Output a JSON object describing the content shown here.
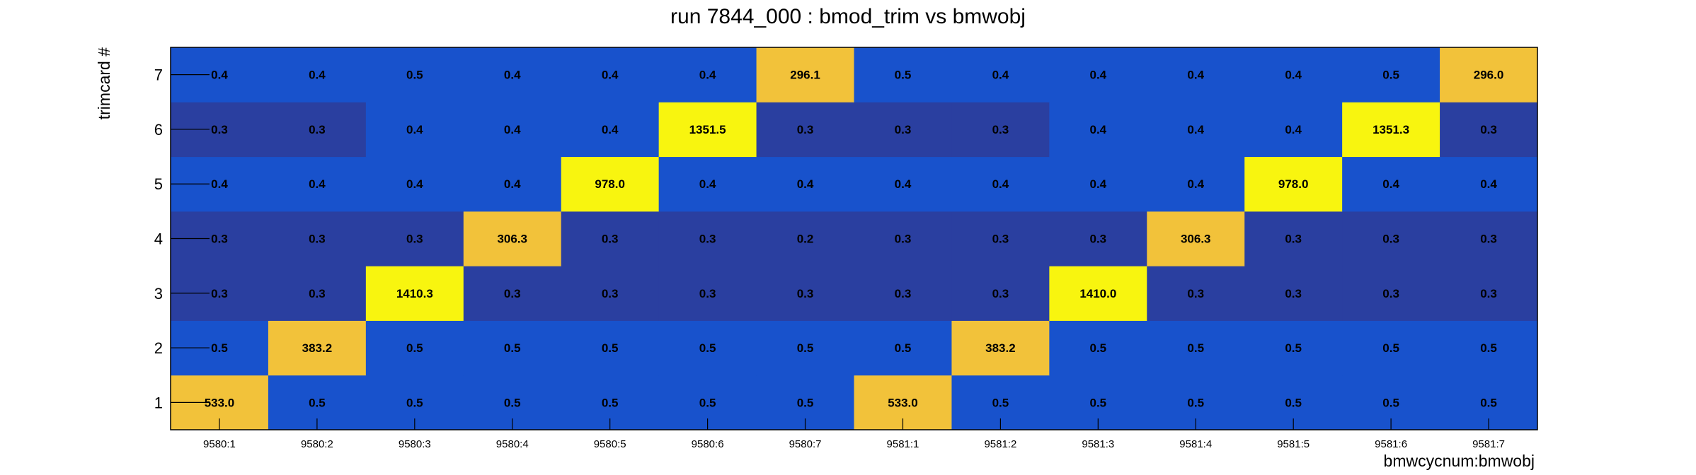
{
  "chart_data": {
    "type": "heatmap",
    "title": "run 7844_000 : bmod_trim vs bmwobj",
    "xlabel": "bmwcycnum:bmwobj",
    "ylabel": "trimcard #",
    "x_categories": [
      "9580:1",
      "9580:2",
      "9580:3",
      "9580:4",
      "9580:5",
      "9580:6",
      "9580:7",
      "9581:1",
      "9581:2",
      "9581:3",
      "9581:4",
      "9581:5",
      "9581:6",
      "9581:7"
    ],
    "y_categories": [
      "1",
      "2",
      "3",
      "4",
      "5",
      "6",
      "7"
    ],
    "values": [
      [
        533.0,
        0.5,
        0.5,
        0.5,
        0.5,
        0.5,
        0.5,
        533.0,
        0.5,
        0.5,
        0.5,
        0.5,
        0.5,
        0.5
      ],
      [
        0.5,
        383.2,
        0.5,
        0.5,
        0.5,
        0.5,
        0.5,
        0.5,
        383.2,
        0.5,
        0.5,
        0.5,
        0.5,
        0.5
      ],
      [
        0.3,
        0.3,
        1410.3,
        0.3,
        0.3,
        0.3,
        0.3,
        0.3,
        0.3,
        1410.0,
        0.3,
        0.3,
        0.3,
        0.3
      ],
      [
        0.3,
        0.3,
        0.3,
        306.3,
        0.3,
        0.3,
        0.2,
        0.3,
        0.3,
        0.3,
        306.3,
        0.3,
        0.3,
        0.3
      ],
      [
        0.4,
        0.4,
        0.4,
        0.4,
        978.0,
        0.4,
        0.4,
        0.4,
        0.4,
        0.4,
        0.4,
        978.0,
        0.4,
        0.4
      ],
      [
        0.3,
        0.3,
        0.4,
        0.4,
        0.4,
        1351.5,
        0.3,
        0.3,
        0.3,
        0.4,
        0.4,
        0.4,
        1351.3,
        0.3
      ],
      [
        0.4,
        0.4,
        0.5,
        0.4,
        0.4,
        0.4,
        296.1,
        0.5,
        0.4,
        0.4,
        0.4,
        0.4,
        0.5,
        296.0
      ]
    ],
    "value_format": "%.1f",
    "colors": {
      "low": "#2a3fa0",
      "lowmid": "#1852cc",
      "mid": "#f2c23a",
      "high": "#f8f50f"
    },
    "legend": "none",
    "grid": false
  }
}
